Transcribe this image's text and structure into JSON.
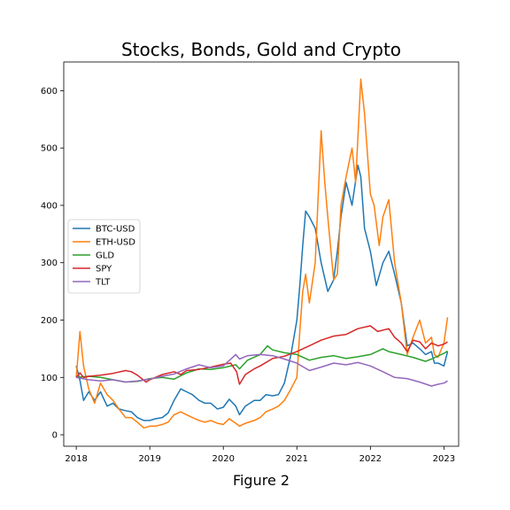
{
  "figure_caption": "Figure 2",
  "chart_data": {
    "type": "line",
    "title": "Stocks, Bonds, Gold and Crypto",
    "xlabel": "",
    "ylabel": "",
    "xlim": [
      2017.83,
      2023.2
    ],
    "ylim": [
      -20,
      650
    ],
    "xticks": [
      2018,
      2019,
      2020,
      2021,
      2022,
      2023
    ],
    "xtick_labels": [
      "2018",
      "2019",
      "2020",
      "2021",
      "2022",
      "2023"
    ],
    "yticks": [
      0,
      100,
      200,
      300,
      400,
      500,
      600
    ],
    "ytick_labels": [
      "0",
      "100",
      "200",
      "300",
      "400",
      "500",
      "600"
    ],
    "grid": false,
    "legend_position": "center-left",
    "series": [
      {
        "name": "BTC-USD",
        "color": "#1f77b4",
        "x": [
          2018.0,
          2018.05,
          2018.1,
          2018.17,
          2018.25,
          2018.33,
          2018.42,
          2018.5,
          2018.58,
          2018.67,
          2018.75,
          2018.83,
          2018.92,
          2019.0,
          2019.08,
          2019.17,
          2019.25,
          2019.33,
          2019.42,
          2019.5,
          2019.58,
          2019.67,
          2019.75,
          2019.83,
          2019.92,
          2020.0,
          2020.08,
          2020.17,
          2020.22,
          2020.3,
          2020.42,
          2020.5,
          2020.58,
          2020.67,
          2020.75,
          2020.83,
          2020.92,
          2021.0,
          2021.04,
          2021.08,
          2021.12,
          2021.17,
          2021.25,
          2021.33,
          2021.42,
          2021.5,
          2021.55,
          2021.6,
          2021.67,
          2021.75,
          2021.83,
          2021.87,
          2021.92,
          2022.0,
          2022.08,
          2022.17,
          2022.25,
          2022.33,
          2022.42,
          2022.5,
          2022.58,
          2022.67,
          2022.75,
          2022.83,
          2022.87,
          2022.92,
          2023.0,
          2023.05
        ],
        "y": [
          120,
          95,
          60,
          75,
          60,
          75,
          50,
          55,
          45,
          42,
          40,
          30,
          25,
          25,
          28,
          30,
          38,
          60,
          80,
          75,
          70,
          60,
          55,
          55,
          45,
          48,
          62,
          50,
          35,
          50,
          60,
          60,
          70,
          68,
          70,
          90,
          140,
          200,
          260,
          330,
          390,
          380,
          360,
          300,
          250,
          270,
          320,
          380,
          440,
          400,
          470,
          450,
          360,
          320,
          260,
          300,
          320,
          280,
          230,
          155,
          160,
          150,
          140,
          145,
          125,
          125,
          120,
          145
        ]
      },
      {
        "name": "ETH-USD",
        "color": "#ff7f0e",
        "x": [
          2018.0,
          2018.05,
          2018.1,
          2018.17,
          2018.25,
          2018.33,
          2018.42,
          2018.5,
          2018.58,
          2018.67,
          2018.75,
          2018.83,
          2018.92,
          2019.0,
          2019.08,
          2019.17,
          2019.25,
          2019.33,
          2019.42,
          2019.5,
          2019.58,
          2019.67,
          2019.75,
          2019.83,
          2019.92,
          2020.0,
          2020.08,
          2020.17,
          2020.22,
          2020.3,
          2020.42,
          2020.5,
          2020.58,
          2020.67,
          2020.75,
          2020.83,
          2020.92,
          2021.0,
          2021.04,
          2021.08,
          2021.12,
          2021.17,
          2021.25,
          2021.33,
          2021.38,
          2021.42,
          2021.5,
          2021.55,
          2021.6,
          2021.67,
          2021.75,
          2021.8,
          2021.87,
          2021.92,
          2022.0,
          2022.05,
          2022.12,
          2022.17,
          2022.25,
          2022.33,
          2022.42,
          2022.5,
          2022.58,
          2022.67,
          2022.75,
          2022.83,
          2022.87,
          2022.92,
          2023.0,
          2023.05
        ],
        "y": [
          100,
          180,
          120,
          80,
          55,
          90,
          70,
          60,
          45,
          30,
          30,
          22,
          12,
          15,
          15,
          18,
          22,
          35,
          40,
          35,
          30,
          25,
          22,
          25,
          20,
          18,
          28,
          20,
          15,
          20,
          25,
          30,
          40,
          45,
          50,
          60,
          80,
          100,
          180,
          250,
          280,
          230,
          300,
          530,
          440,
          380,
          270,
          280,
          400,
          450,
          500,
          440,
          620,
          560,
          420,
          400,
          330,
          380,
          410,
          300,
          230,
          140,
          170,
          200,
          160,
          170,
          140,
          135,
          160,
          205
        ]
      },
      {
        "name": "GLD",
        "color": "#2ca02c",
        "x": [
          2018.0,
          2018.17,
          2018.33,
          2018.5,
          2018.67,
          2018.83,
          2019.0,
          2019.17,
          2019.33,
          2019.5,
          2019.67,
          2019.83,
          2020.0,
          2020.17,
          2020.22,
          2020.33,
          2020.5,
          2020.6,
          2020.67,
          2020.83,
          2021.0,
          2021.17,
          2021.33,
          2021.5,
          2021.67,
          2021.83,
          2022.0,
          2022.17,
          2022.25,
          2022.42,
          2022.58,
          2022.75,
          2022.83,
          2023.0,
          2023.05
        ],
        "y": [
          100,
          102,
          100,
          96,
          92,
          93,
          98,
          100,
          97,
          108,
          115,
          114,
          117,
          122,
          115,
          130,
          140,
          155,
          148,
          143,
          140,
          130,
          135,
          138,
          133,
          136,
          140,
          150,
          145,
          140,
          135,
          128,
          132,
          142,
          146
        ]
      },
      {
        "name": "SPY",
        "color": "#d62728",
        "x": [
          2018.0,
          2018.05,
          2018.1,
          2018.17,
          2018.33,
          2018.5,
          2018.67,
          2018.75,
          2018.83,
          2018.95,
          2019.0,
          2019.17,
          2019.33,
          2019.42,
          2019.5,
          2019.67,
          2019.83,
          2020.0,
          2020.1,
          2020.18,
          2020.22,
          2020.3,
          2020.42,
          2020.5,
          2020.67,
          2020.83,
          2021.0,
          2021.17,
          2021.33,
          2021.5,
          2021.67,
          2021.83,
          2022.0,
          2022.1,
          2022.25,
          2022.33,
          2022.42,
          2022.5,
          2022.58,
          2022.67,
          2022.75,
          2022.83,
          2022.92,
          2023.0,
          2023.05
        ],
        "y": [
          100,
          108,
          100,
          102,
          104,
          107,
          112,
          110,
          104,
          92,
          96,
          105,
          110,
          105,
          112,
          114,
          118,
          123,
          125,
          110,
          88,
          105,
          115,
          120,
          133,
          137,
          145,
          155,
          165,
          172,
          175,
          185,
          190,
          180,
          185,
          170,
          160,
          145,
          165,
          162,
          150,
          160,
          155,
          158,
          162
        ]
      },
      {
        "name": "TLT",
        "color": "#9467bd",
        "x": [
          2018.0,
          2018.17,
          2018.33,
          2018.5,
          2018.67,
          2018.83,
          2019.0,
          2019.17,
          2019.33,
          2019.5,
          2019.67,
          2019.83,
          2020.0,
          2020.17,
          2020.22,
          2020.33,
          2020.5,
          2020.67,
          2020.83,
          2021.0,
          2021.17,
          2021.33,
          2021.5,
          2021.67,
          2021.83,
          2022.0,
          2022.17,
          2022.33,
          2022.5,
          2022.67,
          2022.83,
          2022.92,
          2023.0,
          2023.05
        ],
        "y": [
          100,
          96,
          94,
          96,
          92,
          94,
          97,
          102,
          106,
          115,
          122,
          117,
          120,
          140,
          132,
          138,
          140,
          138,
          132,
          125,
          112,
          118,
          125,
          122,
          126,
          120,
          110,
          100,
          98,
          92,
          85,
          88,
          90,
          94
        ]
      }
    ]
  }
}
